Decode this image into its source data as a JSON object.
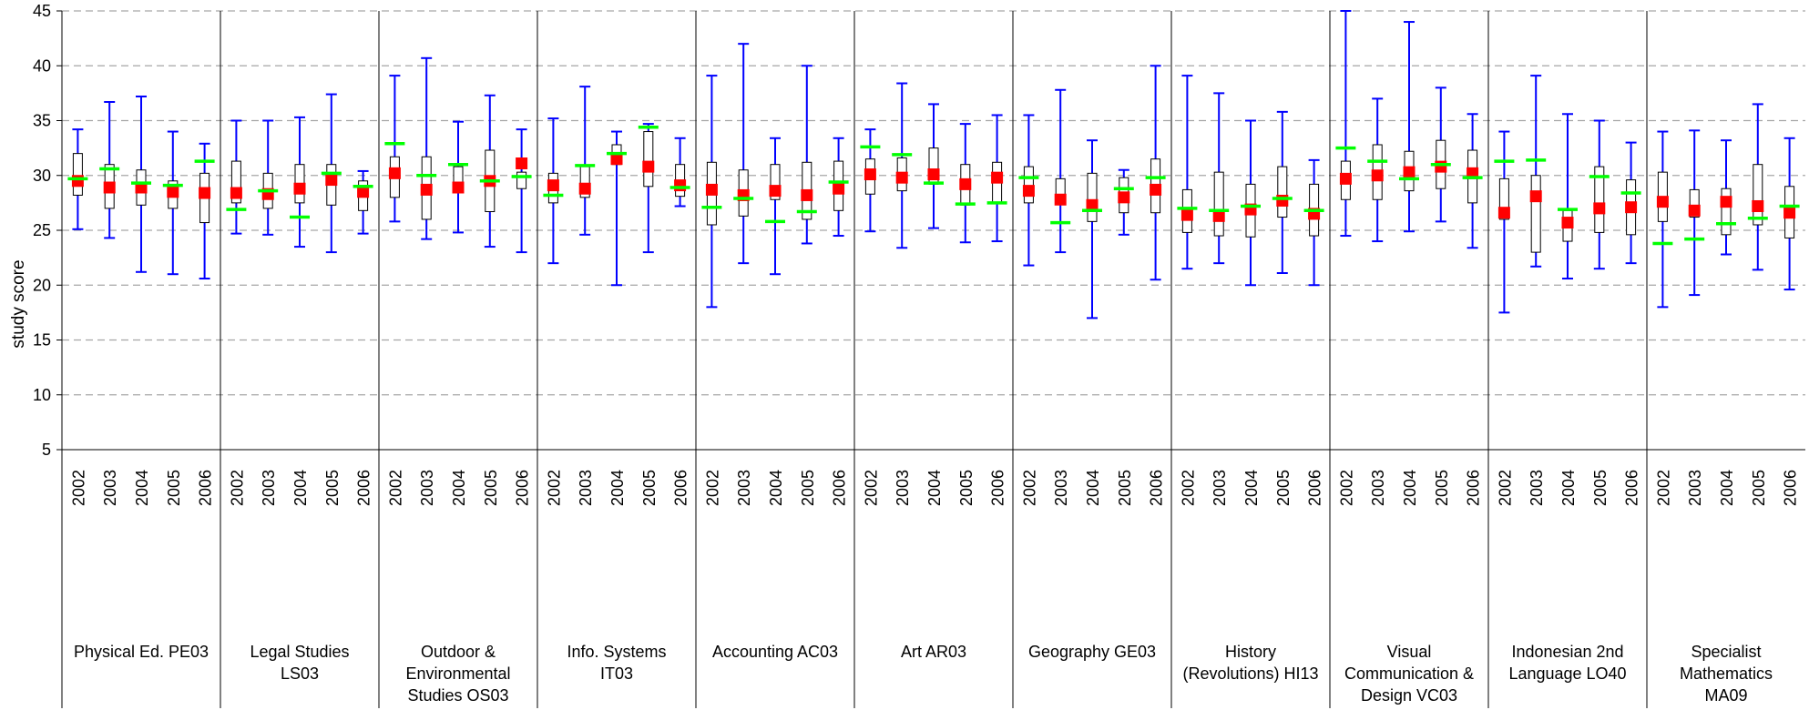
{
  "chart_data": {
    "type": "box",
    "ylabel": "study score",
    "ylim": [
      5,
      45
    ],
    "yticks": [
      5,
      10,
      15,
      20,
      25,
      30,
      35,
      40,
      45
    ],
    "grid": true,
    "years": [
      "2002",
      "2003",
      "2004",
      "2005",
      "2006"
    ],
    "colors": {
      "whisker": "#0000ff",
      "box": "#000000",
      "mean": "#ff0000",
      "marker": "#00ff00",
      "grid": "#a6a6a6"
    },
    "groups": [
      {
        "label": [
          "Physical Ed. PE03"
        ],
        "boxes": [
          {
            "min": 25.1,
            "q1": 28.2,
            "q3": 32.0,
            "max": 34.2,
            "mean": 29.5,
            "mark": 29.7
          },
          {
            "min": 24.3,
            "q1": 27.0,
            "q3": 31.0,
            "max": 36.7,
            "mean": 28.9,
            "mark": 30.6
          },
          {
            "min": 21.2,
            "q1": 27.3,
            "q3": 30.5,
            "max": 37.2,
            "mean": 28.9,
            "mark": 29.3
          },
          {
            "min": 21.0,
            "q1": 27.0,
            "q3": 29.5,
            "max": 34.0,
            "mean": 28.5,
            "mark": 29.1
          },
          {
            "min": 20.6,
            "q1": 25.7,
            "q3": 30.2,
            "max": 32.9,
            "mean": 28.4,
            "mark": 31.3
          }
        ]
      },
      {
        "label": [
          "Legal Studies",
          "LS03"
        ],
        "boxes": [
          {
            "min": 24.7,
            "q1": 27.5,
            "q3": 31.3,
            "max": 35.0,
            "mean": 28.4,
            "mark": 26.9
          },
          {
            "min": 24.6,
            "q1": 27.0,
            "q3": 30.2,
            "max": 35.0,
            "mean": 28.3,
            "mark": 28.6
          },
          {
            "min": 23.5,
            "q1": 27.5,
            "q3": 31.0,
            "max": 35.3,
            "mean": 28.8,
            "mark": 26.2
          },
          {
            "min": 23.0,
            "q1": 27.3,
            "q3": 31.0,
            "max": 37.4,
            "mean": 29.6,
            "mark": 30.2
          },
          {
            "min": 24.7,
            "q1": 26.8,
            "q3": 29.5,
            "max": 30.4,
            "mean": 28.5,
            "mark": 29.0
          }
        ]
      },
      {
        "label": [
          "Outdoor &",
          "Environmental",
          "Studies OS03"
        ],
        "boxes": [
          {
            "min": 25.8,
            "q1": 28.0,
            "q3": 31.7,
            "max": 39.1,
            "mean": 30.2,
            "mark": 32.9
          },
          {
            "min": 24.2,
            "q1": 26.0,
            "q3": 31.7,
            "max": 40.7,
            "mean": 28.7,
            "mark": 30.0
          },
          {
            "min": 24.8,
            "q1": 28.5,
            "q3": 30.8,
            "max": 34.9,
            "mean": 28.9,
            "mark": 31.0
          },
          {
            "min": 23.5,
            "q1": 26.7,
            "q3": 32.3,
            "max": 37.3,
            "mean": 29.5,
            "mark": 29.5
          },
          {
            "min": 23.0,
            "q1": 28.8,
            "q3": 30.3,
            "max": 34.2,
            "mean": 31.1,
            "mark": 29.9
          }
        ]
      },
      {
        "label": [
          "Info. Systems",
          "IT03"
        ],
        "boxes": [
          {
            "min": 22.0,
            "q1": 27.5,
            "q3": 30.2,
            "max": 35.2,
            "mean": 29.1,
            "mark": 28.2
          },
          {
            "min": 24.6,
            "q1": 28.0,
            "q3": 30.8,
            "max": 38.1,
            "mean": 28.8,
            "mark": 30.9
          },
          {
            "min": 20.0,
            "q1": 31.0,
            "q3": 32.8,
            "max": 34.0,
            "mean": 31.5,
            "mark": 32.0
          },
          {
            "min": 23.0,
            "q1": 29.0,
            "q3": 34.0,
            "max": 34.7,
            "mean": 30.8,
            "mark": 34.4
          },
          {
            "min": 27.2,
            "q1": 28.1,
            "q3": 31.0,
            "max": 33.4,
            "mean": 29.1,
            "mark": 28.9
          }
        ]
      },
      {
        "label": [
          "Accounting AC03"
        ],
        "boxes": [
          {
            "min": 18.0,
            "q1": 25.5,
            "q3": 31.2,
            "max": 39.1,
            "mean": 28.7,
            "mark": 27.1
          },
          {
            "min": 22.0,
            "q1": 26.3,
            "q3": 30.5,
            "max": 42.0,
            "mean": 28.2,
            "mark": 27.9
          },
          {
            "min": 21.0,
            "q1": 27.8,
            "q3": 31.0,
            "max": 33.4,
            "mean": 28.6,
            "mark": 25.8
          },
          {
            "min": 23.8,
            "q1": 26.0,
            "q3": 31.2,
            "max": 40.0,
            "mean": 28.2,
            "mark": 26.7
          },
          {
            "min": 24.5,
            "q1": 26.8,
            "q3": 31.3,
            "max": 33.4,
            "mean": 28.8,
            "mark": 29.4
          }
        ]
      },
      {
        "label": [
          "Art AR03"
        ],
        "boxes": [
          {
            "min": 24.9,
            "q1": 28.3,
            "q3": 31.5,
            "max": 34.2,
            "mean": 30.1,
            "mark": 32.6
          },
          {
            "min": 23.4,
            "q1": 28.6,
            "q3": 31.6,
            "max": 38.4,
            "mean": 29.8,
            "mark": 31.9
          },
          {
            "min": 25.2,
            "q1": 29.2,
            "q3": 32.5,
            "max": 36.5,
            "mean": 30.1,
            "mark": 29.3
          },
          {
            "min": 23.9,
            "q1": 27.3,
            "q3": 31.0,
            "max": 34.7,
            "mean": 29.2,
            "mark": 27.4
          },
          {
            "min": 24.0,
            "q1": 27.5,
            "q3": 31.2,
            "max": 35.5,
            "mean": 29.8,
            "mark": 27.5
          }
        ]
      },
      {
        "label": [
          "Geography GE03"
        ],
        "boxes": [
          {
            "min": 21.8,
            "q1": 27.5,
            "q3": 30.8,
            "max": 35.5,
            "mean": 28.6,
            "mark": 29.8
          },
          {
            "min": 23.0,
            "q1": 27.4,
            "q3": 29.7,
            "max": 37.8,
            "mean": 27.8,
            "mark": 25.7
          },
          {
            "min": 17.0,
            "q1": 25.8,
            "q3": 30.2,
            "max": 33.2,
            "mean": 27.3,
            "mark": 26.8
          },
          {
            "min": 24.6,
            "q1": 26.6,
            "q3": 29.8,
            "max": 30.5,
            "mean": 28.0,
            "mark": 28.8
          },
          {
            "min": 20.5,
            "q1": 26.6,
            "q3": 31.5,
            "max": 40.0,
            "mean": 28.7,
            "mark": 29.8
          }
        ]
      },
      {
        "label": [
          "History",
          "(Revolutions) HI13"
        ],
        "boxes": [
          {
            "min": 21.5,
            "q1": 24.8,
            "q3": 28.7,
            "max": 39.1,
            "mean": 26.4,
            "mark": 27.0
          },
          {
            "min": 22.0,
            "q1": 24.5,
            "q3": 30.3,
            "max": 37.5,
            "mean": 26.3,
            "mark": 26.8
          },
          {
            "min": 20.0,
            "q1": 24.4,
            "q3": 29.2,
            "max": 35.0,
            "mean": 26.9,
            "mark": 27.2
          },
          {
            "min": 21.1,
            "q1": 26.2,
            "q3": 30.8,
            "max": 35.8,
            "mean": 27.7,
            "mark": 27.9
          },
          {
            "min": 20.0,
            "q1": 24.5,
            "q3": 29.2,
            "max": 31.4,
            "mean": 26.5,
            "mark": 26.8
          }
        ]
      },
      {
        "label": [
          "Visual",
          "Communication &",
          "Design VC03"
        ],
        "boxes": [
          {
            "min": 24.5,
            "q1": 27.8,
            "q3": 31.3,
            "max": 45.0,
            "mean": 29.7,
            "mark": 32.5
          },
          {
            "min": 24.0,
            "q1": 27.8,
            "q3": 32.8,
            "max": 37.0,
            "mean": 30.0,
            "mark": 31.3
          },
          {
            "min": 24.9,
            "q1": 28.6,
            "q3": 32.2,
            "max": 44.0,
            "mean": 30.3,
            "mark": 29.7
          },
          {
            "min": 25.8,
            "q1": 28.8,
            "q3": 33.2,
            "max": 38.0,
            "mean": 30.8,
            "mark": 31.0
          },
          {
            "min": 23.4,
            "q1": 27.5,
            "q3": 32.3,
            "max": 35.6,
            "mean": 30.2,
            "mark": 29.8
          }
        ]
      },
      {
        "label": [
          "Indonesian 2nd",
          "Language LO40"
        ],
        "boxes": [
          {
            "min": 17.5,
            "q1": 26.0,
            "q3": 29.7,
            "max": 34.0,
            "mean": 26.6,
            "mark": 31.3
          },
          {
            "min": 21.7,
            "q1": 23.0,
            "q3": 30.0,
            "max": 39.1,
            "mean": 28.1,
            "mark": 31.4
          },
          {
            "min": 20.6,
            "q1": 24.0,
            "q3": 26.8,
            "max": 35.6,
            "mean": 25.7,
            "mark": 26.9
          },
          {
            "min": 21.5,
            "q1": 24.8,
            "q3": 30.8,
            "max": 35.0,
            "mean": 27.0,
            "mark": 29.9
          },
          {
            "min": 22.0,
            "q1": 24.6,
            "q3": 29.6,
            "max": 33.0,
            "mean": 27.1,
            "mark": 28.4
          }
        ]
      },
      {
        "label": [
          "Specialist",
          "Mathematics",
          "MA09"
        ],
        "boxes": [
          {
            "min": 18.0,
            "q1": 25.8,
            "q3": 30.3,
            "max": 34.0,
            "mean": 27.6,
            "mark": 23.8
          },
          {
            "min": 19.1,
            "q1": 26.2,
            "q3": 28.7,
            "max": 34.1,
            "mean": 26.8,
            "mark": 24.2
          },
          {
            "min": 22.8,
            "q1": 24.6,
            "q3": 28.8,
            "max": 33.2,
            "mean": 27.6,
            "mark": 25.6
          },
          {
            "min": 21.4,
            "q1": 25.5,
            "q3": 31.0,
            "max": 36.5,
            "mean": 27.2,
            "mark": 26.1
          },
          {
            "min": 19.6,
            "q1": 24.3,
            "q3": 29.0,
            "max": 33.4,
            "mean": 26.6,
            "mark": 27.2
          }
        ]
      }
    ]
  }
}
